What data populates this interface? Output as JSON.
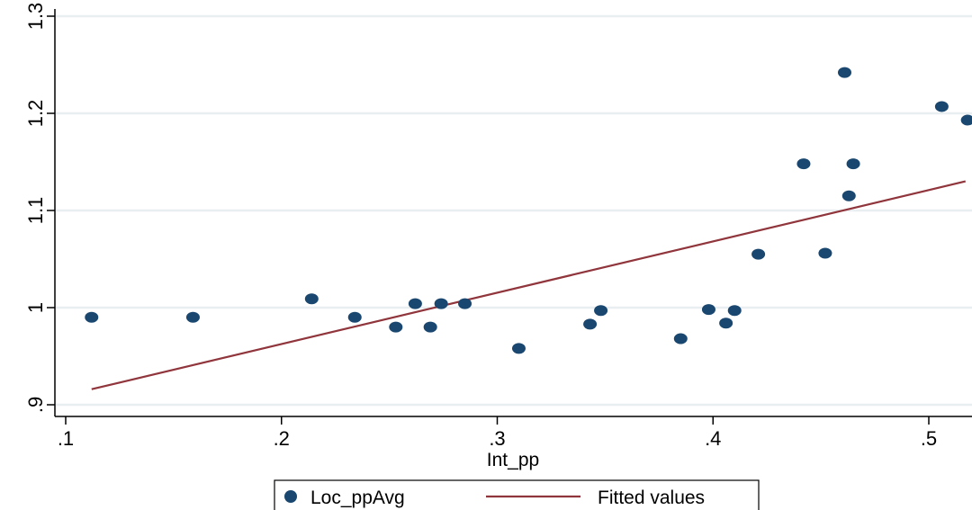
{
  "chart_data": {
    "type": "scatter",
    "xlabel": "Int_pp",
    "ylabel": "",
    "xlim": [
      0.1,
      0.52
    ],
    "ylim": [
      0.9,
      1.3
    ],
    "x_ticks": [
      0.1,
      0.2,
      0.3,
      0.4,
      0.5
    ],
    "x_tick_labels": [
      ".1",
      ".2",
      ".3",
      ".4",
      ".5"
    ],
    "y_ticks": [
      0.9,
      1.0,
      1.1,
      1.2,
      1.3
    ],
    "y_tick_labels": [
      ".9",
      "1",
      "1.1",
      "1.2",
      "1.3"
    ],
    "grid": "horizontal",
    "legend_position": "bottom",
    "series": [
      {
        "name": "Loc_ppAvg",
        "kind": "scatter",
        "color": "#1a476f",
        "points": [
          {
            "x": 0.112,
            "y": 0.99
          },
          {
            "x": 0.159,
            "y": 0.99
          },
          {
            "x": 0.214,
            "y": 1.009
          },
          {
            "x": 0.234,
            "y": 0.99
          },
          {
            "x": 0.253,
            "y": 0.98
          },
          {
            "x": 0.262,
            "y": 1.004
          },
          {
            "x": 0.269,
            "y": 0.98
          },
          {
            "x": 0.274,
            "y": 1.004
          },
          {
            "x": 0.285,
            "y": 1.004
          },
          {
            "x": 0.31,
            "y": 0.958
          },
          {
            "x": 0.343,
            "y": 0.983
          },
          {
            "x": 0.348,
            "y": 0.997
          },
          {
            "x": 0.385,
            "y": 0.968
          },
          {
            "x": 0.398,
            "y": 0.998
          },
          {
            "x": 0.406,
            "y": 0.984
          },
          {
            "x": 0.41,
            "y": 0.997
          },
          {
            "x": 0.421,
            "y": 1.055
          },
          {
            "x": 0.442,
            "y": 1.148
          },
          {
            "x": 0.452,
            "y": 1.056
          },
          {
            "x": 0.461,
            "y": 1.242
          },
          {
            "x": 0.463,
            "y": 1.115
          },
          {
            "x": 0.465,
            "y": 1.148
          },
          {
            "x": 0.506,
            "y": 1.207
          },
          {
            "x": 0.518,
            "y": 1.193
          }
        ]
      },
      {
        "name": "Fitted values",
        "kind": "line",
        "color": "#90353b",
        "x": [
          0.112,
          0.517
        ],
        "y": [
          0.916,
          1.13
        ]
      }
    ]
  }
}
